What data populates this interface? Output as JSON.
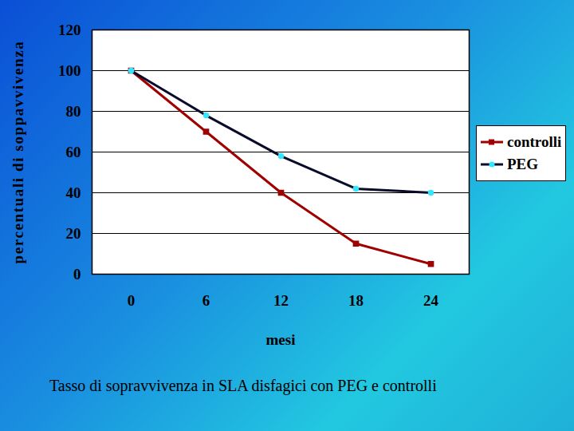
{
  "chart_data": {
    "type": "line",
    "caption": "Tasso di sopravvivenza in SLA disfagici con PEG e controlli",
    "x_label": "mesi",
    "y_label": "percentuali di soppavvivenza",
    "categories": [
      "0",
      "6",
      "12",
      "18",
      "24"
    ],
    "series": [
      {
        "name": "controlli",
        "color": "#a00000",
        "marker": "square",
        "values": [
          100,
          70,
          40,
          15,
          5
        ]
      },
      {
        "name": "PEG",
        "color": "#0a0a2a",
        "marker": "circle",
        "values": [
          100,
          78,
          58,
          42,
          40
        ]
      }
    ],
    "ylim": [
      0,
      120
    ],
    "yticks": [
      0,
      20,
      40,
      60,
      80,
      100,
      120
    ],
    "grid": true,
    "legend": "right"
  }
}
